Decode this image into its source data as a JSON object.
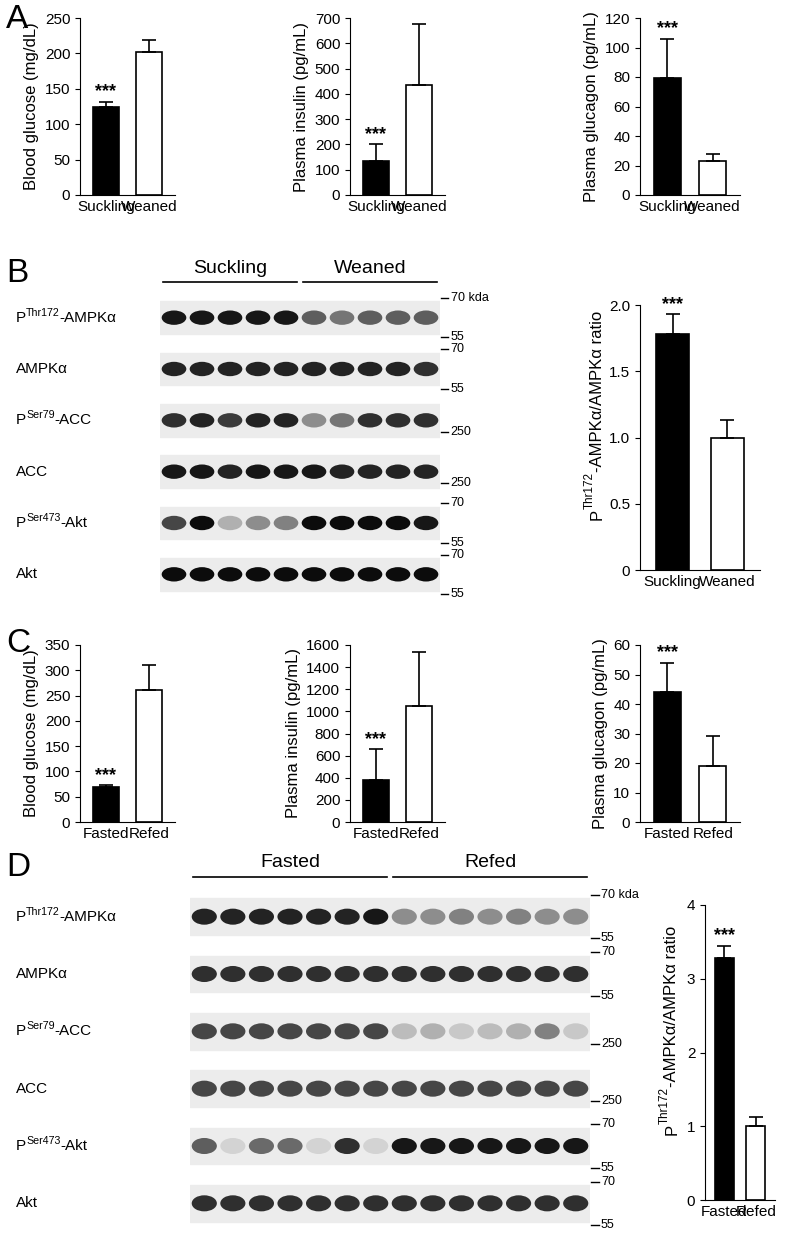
{
  "panel_labels": [
    "A",
    "B",
    "C",
    "D"
  ],
  "chart_data": [
    {
      "type": "bar",
      "ylabel": "Blood glucose (mg/dL)",
      "categories": [
        "Suckling",
        "Weaned"
      ],
      "values": [
        124,
        202
      ],
      "errors": [
        8,
        17
      ],
      "colors": [
        "#000000",
        "#ffffff"
      ],
      "ylim": [
        0,
        250
      ],
      "yticks": [
        0,
        50,
        100,
        150,
        200,
        250
      ],
      "annotations": [
        {
          "text": "***",
          "category": "Suckling"
        }
      ]
    },
    {
      "type": "bar",
      "ylabel": "Plasma insulin (pg/mL)",
      "categories": [
        "Suckling",
        "Weaned"
      ],
      "values": [
        135,
        435
      ],
      "errors": [
        65,
        240
      ],
      "colors": [
        "#000000",
        "#ffffff"
      ],
      "ylim": [
        0,
        700
      ],
      "yticks": [
        0,
        100,
        200,
        300,
        400,
        500,
        600,
        700
      ],
      "annotations": [
        {
          "text": "***",
          "category": "Suckling"
        }
      ]
    },
    {
      "type": "bar",
      "ylabel": "Plasma glucagon (pg/mL)",
      "categories": [
        "Suckling",
        "Weaned"
      ],
      "values": [
        79,
        23
      ],
      "errors": [
        27,
        5
      ],
      "colors": [
        "#000000",
        "#ffffff"
      ],
      "ylim": [
        0,
        120
      ],
      "yticks": [
        0,
        20,
        40,
        60,
        80,
        100,
        120
      ],
      "annotations": [
        {
          "text": "***",
          "category": "Suckling"
        }
      ]
    },
    {
      "type": "bar",
      "ylabel": {
        "prefix": "P",
        "sup": "Thr172",
        "suffix": "-AMPKα/AMPKα ratio"
      },
      "categories": [
        "Suckling",
        "Weaned"
      ],
      "values": [
        1.78,
        1.0
      ],
      "errors": [
        0.15,
        0.13
      ],
      "colors": [
        "#000000",
        "#ffffff"
      ],
      "ylim": [
        0,
        2.0
      ],
      "yticks": [
        0,
        0.5,
        1.0,
        1.5,
        2.0
      ],
      "annotations": [
        {
          "text": "***",
          "category": "Suckling"
        }
      ]
    },
    {
      "type": "bar",
      "ylabel": "Blood glucose (mg/dL)",
      "categories": [
        "Fasted",
        "Refed"
      ],
      "values": [
        70,
        262
      ],
      "errors": [
        3,
        48
      ],
      "colors": [
        "#000000",
        "#ffffff"
      ],
      "ylim": [
        0,
        350
      ],
      "yticks": [
        0,
        50,
        100,
        150,
        200,
        250,
        300,
        350
      ],
      "annotations": [
        {
          "text": "***",
          "category": "Fasted"
        }
      ]
    },
    {
      "type": "bar",
      "ylabel": "Plasma insulin (pg/mL)",
      "categories": [
        "Fasted",
        "Refed"
      ],
      "values": [
        380,
        1050
      ],
      "errors": [
        280,
        490
      ],
      "colors": [
        "#000000",
        "#ffffff"
      ],
      "ylim": [
        0,
        1600
      ],
      "yticks": [
        0,
        200,
        400,
        600,
        800,
        1000,
        1200,
        1400,
        1600
      ],
      "annotations": [
        {
          "text": "***",
          "category": "Fasted"
        }
      ]
    },
    {
      "type": "bar",
      "ylabel": "Plasma glucagon (pg/mL)",
      "categories": [
        "Fasted",
        "Refed"
      ],
      "values": [
        44,
        19
      ],
      "errors": [
        10,
        10
      ],
      "colors": [
        "#000000",
        "#ffffff"
      ],
      "ylim": [
        0,
        60
      ],
      "yticks": [
        0,
        10,
        20,
        30,
        40,
        50,
        60
      ],
      "annotations": [
        {
          "text": "***",
          "category": "Fasted"
        }
      ]
    },
    {
      "type": "bar",
      "ylabel": {
        "prefix": "P",
        "sup": "Thr172",
        "suffix": "-AMPKα/AMPKα ratio"
      },
      "categories": [
        "Fasted",
        "Refed"
      ],
      "values": [
        3.28,
        1.0
      ],
      "errors": [
        0.17,
        0.12
      ],
      "colors": [
        "#000000",
        "#ffffff"
      ],
      "ylim": [
        0,
        4
      ],
      "yticks": [
        0,
        1,
        2,
        3,
        4
      ],
      "annotations": [
        {
          "text": "***",
          "category": "Fasted"
        }
      ]
    }
  ],
  "blots": [
    {
      "groups": [
        {
          "name": "Suckling",
          "lanes": 5
        },
        {
          "name": "Weaned",
          "lanes": 5
        }
      ],
      "rows": [
        {
          "label": {
            "prefix": "P",
            "sup": "Thr172",
            "suffix": "-AMPKα"
          },
          "markers": [
            {
              "value": 70,
              "label": "70 kda"
            },
            {
              "value": 55,
              "label": "55"
            }
          ],
          "bands": [
            0.9,
            0.9,
            0.9,
            0.9,
            0.9,
            0.6,
            0.5,
            0.6,
            0.6,
            0.6
          ]
        },
        {
          "label": "AMPKα",
          "markers": [
            {
              "value": 70,
              "label": "70"
            },
            {
              "value": 55,
              "label": "55"
            }
          ],
          "bands": [
            0.85,
            0.85,
            0.85,
            0.85,
            0.85,
            0.85,
            0.85,
            0.85,
            0.85,
            0.8
          ]
        },
        {
          "label": {
            "prefix": "P",
            "sup": "Ser79",
            "suffix": "-ACC"
          },
          "markers": [
            {
              "value": 250,
              "label": "250"
            }
          ],
          "bands": [
            0.8,
            0.85,
            0.75,
            0.85,
            0.85,
            0.4,
            0.5,
            0.8,
            0.8,
            0.8
          ]
        },
        {
          "label": "ACC",
          "markers": [
            {
              "value": 250,
              "label": "250"
            }
          ],
          "bands": [
            0.9,
            0.9,
            0.85,
            0.9,
            0.9,
            0.9,
            0.85,
            0.85,
            0.85,
            0.85
          ]
        },
        {
          "label": {
            "prefix": "P",
            "sup": "Ser473",
            "suffix": "-Akt"
          },
          "markers": [
            {
              "value": 70,
              "label": "70"
            },
            {
              "value": 55,
              "label": "55"
            }
          ],
          "bands": [
            0.7,
            0.95,
            0.25,
            0.4,
            0.45,
            0.95,
            0.95,
            0.95,
            0.95,
            0.9
          ]
        },
        {
          "label": "Akt",
          "markers": [
            {
              "value": 70,
              "label": "70"
            },
            {
              "value": 55,
              "label": "55"
            }
          ],
          "bands": [
            0.95,
            0.95,
            0.95,
            0.95,
            0.95,
            0.95,
            0.95,
            0.95,
            0.95,
            0.95
          ]
        }
      ]
    },
    {
      "groups": [
        {
          "name": "Fasted",
          "lanes": 7
        },
        {
          "name": "Refed",
          "lanes": 7
        }
      ],
      "rows": [
        {
          "label": {
            "prefix": "P",
            "sup": "Thr172",
            "suffix": "-AMPKα"
          },
          "markers": [
            {
              "value": 70,
              "label": "70 kda"
            },
            {
              "value": 55,
              "label": "55"
            }
          ],
          "bands": [
            0.85,
            0.85,
            0.85,
            0.85,
            0.85,
            0.85,
            0.9,
            0.4,
            0.4,
            0.45,
            0.4,
            0.45,
            0.4,
            0.4
          ]
        },
        {
          "label": "AMPKα",
          "markers": [
            {
              "value": 70,
              "label": "70"
            },
            {
              "value": 55,
              "label": "55"
            }
          ],
          "bands": [
            0.8,
            0.8,
            0.8,
            0.8,
            0.8,
            0.8,
            0.8,
            0.8,
            0.8,
            0.8,
            0.8,
            0.8,
            0.8,
            0.8
          ]
        },
        {
          "label": {
            "prefix": "P",
            "sup": "Ser79",
            "suffix": "-ACC"
          },
          "markers": [
            {
              "value": 250,
              "label": "250"
            }
          ],
          "bands": [
            0.7,
            0.7,
            0.7,
            0.7,
            0.7,
            0.7,
            0.7,
            0.2,
            0.25,
            0.15,
            0.2,
            0.25,
            0.45,
            0.15
          ]
        },
        {
          "label": "ACC",
          "markers": [
            {
              "value": 250,
              "label": "250"
            }
          ],
          "bands": [
            0.7,
            0.7,
            0.7,
            0.7,
            0.7,
            0.7,
            0.7,
            0.7,
            0.7,
            0.7,
            0.7,
            0.7,
            0.7,
            0.7
          ]
        },
        {
          "label": {
            "prefix": "P",
            "sup": "Ser473",
            "suffix": "-Akt"
          },
          "markers": [
            {
              "value": 70,
              "label": "70"
            },
            {
              "value": 55,
              "label": "55"
            }
          ],
          "bands": [
            0.6,
            0.1,
            0.55,
            0.55,
            0.1,
            0.8,
            0.1,
            0.9,
            0.9,
            0.9,
            0.9,
            0.9,
            0.9,
            0.9
          ]
        },
        {
          "label": "Akt",
          "markers": [
            {
              "value": 70,
              "label": "70"
            },
            {
              "value": 55,
              "label": "55"
            }
          ],
          "bands": [
            0.8,
            0.8,
            0.8,
            0.8,
            0.8,
            0.8,
            0.8,
            0.8,
            0.8,
            0.8,
            0.8,
            0.8,
            0.8,
            0.8
          ]
        }
      ]
    }
  ]
}
